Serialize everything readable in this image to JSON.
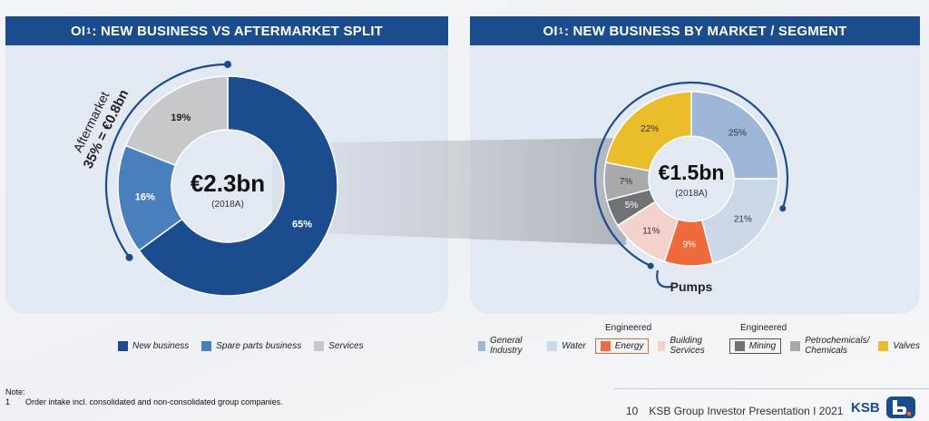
{
  "left_panel": {
    "title_prefix": "OI",
    "title_sup": "1",
    "title_suffix": ": NEW BUSINESS VS AFTERMARKET SPLIT",
    "center_value": "€2.3bn",
    "center_sub": "(2018A)",
    "aftermarket_label": "Aftermarket",
    "aftermarket_value": "35% = €0.8bn"
  },
  "right_panel": {
    "title_prefix": "OI",
    "title_sup": "1",
    "title_suffix": ": NEW BUSINESS BY MARKET / SEGMENT",
    "center_value": "€1.5bn",
    "center_sub": "(2018A)",
    "pumps_label": "Pumps"
  },
  "chart_data": [
    {
      "type": "pie",
      "variant": "donut",
      "center_label": "€2.3bn",
      "center_sub": "(2018A)",
      "labels": [
        "New business",
        "Spare parts business",
        "Services"
      ],
      "values": [
        65,
        16,
        19
      ],
      "value_labels": [
        "65%",
        "16%",
        "19%"
      ],
      "colors": [
        "#1a4c8e",
        "#4a7fbe",
        "#c6c8cb"
      ],
      "label_colors": [
        "#ffffff",
        "#ffffff",
        "#222222"
      ],
      "annotation": "Aftermarket 35% = €0.8bn",
      "legend_position": "bottom"
    },
    {
      "type": "pie",
      "variant": "donut",
      "center_label": "€1.5bn",
      "center_sub": "(2018A)",
      "labels": [
        "General Industry",
        "Water",
        "Energy",
        "Building Services",
        "Mining",
        "Petrochemicals/ Chemicals",
        "Valves"
      ],
      "values": [
        25,
        21,
        9,
        11,
        5,
        7,
        22
      ],
      "value_labels": [
        "25%",
        "21%",
        "9%",
        "11%",
        "5%",
        "7%",
        "22%"
      ],
      "colors": [
        "#9db6d6",
        "#cbd8e8",
        "#ef6a3c",
        "#f3d2cb",
        "#707275",
        "#a7a9ac",
        "#e9bd2c"
      ],
      "label_colors": [
        "#333333",
        "#333333",
        "#ffffff",
        "#333333",
        "#ffffff",
        "#333333",
        "#333333"
      ],
      "annotation": "Pumps",
      "legend_position": "bottom"
    }
  ],
  "legend_left": [
    {
      "label": "New business",
      "color": "#1a4c8e"
    },
    {
      "label": "Spare parts business",
      "color": "#4a7fbe"
    },
    {
      "label": "Services",
      "color": "#c6c8cb"
    }
  ],
  "legend_right": {
    "engineered_label": "Engineered",
    "items": [
      {
        "label": "General Industry",
        "color": "#9db6d6"
      },
      {
        "label": "Water",
        "color": "#cbd8e8"
      },
      {
        "label": "Energy",
        "color": "#ef6a3c"
      },
      {
        "label": "Building Services",
        "color": "#f3d2cb"
      },
      {
        "label": "Mining",
        "color": "#707275"
      },
      {
        "label": "Petrochemicals/",
        "label2": "Chemicals",
        "color": "#a7a9ac"
      },
      {
        "label": "Valves",
        "color": "#e9bd2c"
      }
    ]
  },
  "note": {
    "title": "Note:",
    "number": "1",
    "text": "Order intake incl. consolidated and non-consolidated group companies."
  },
  "footer": {
    "page_number": "10",
    "text": "KSB Group Investor Presentation I 2021",
    "logo_text": "KSB"
  }
}
